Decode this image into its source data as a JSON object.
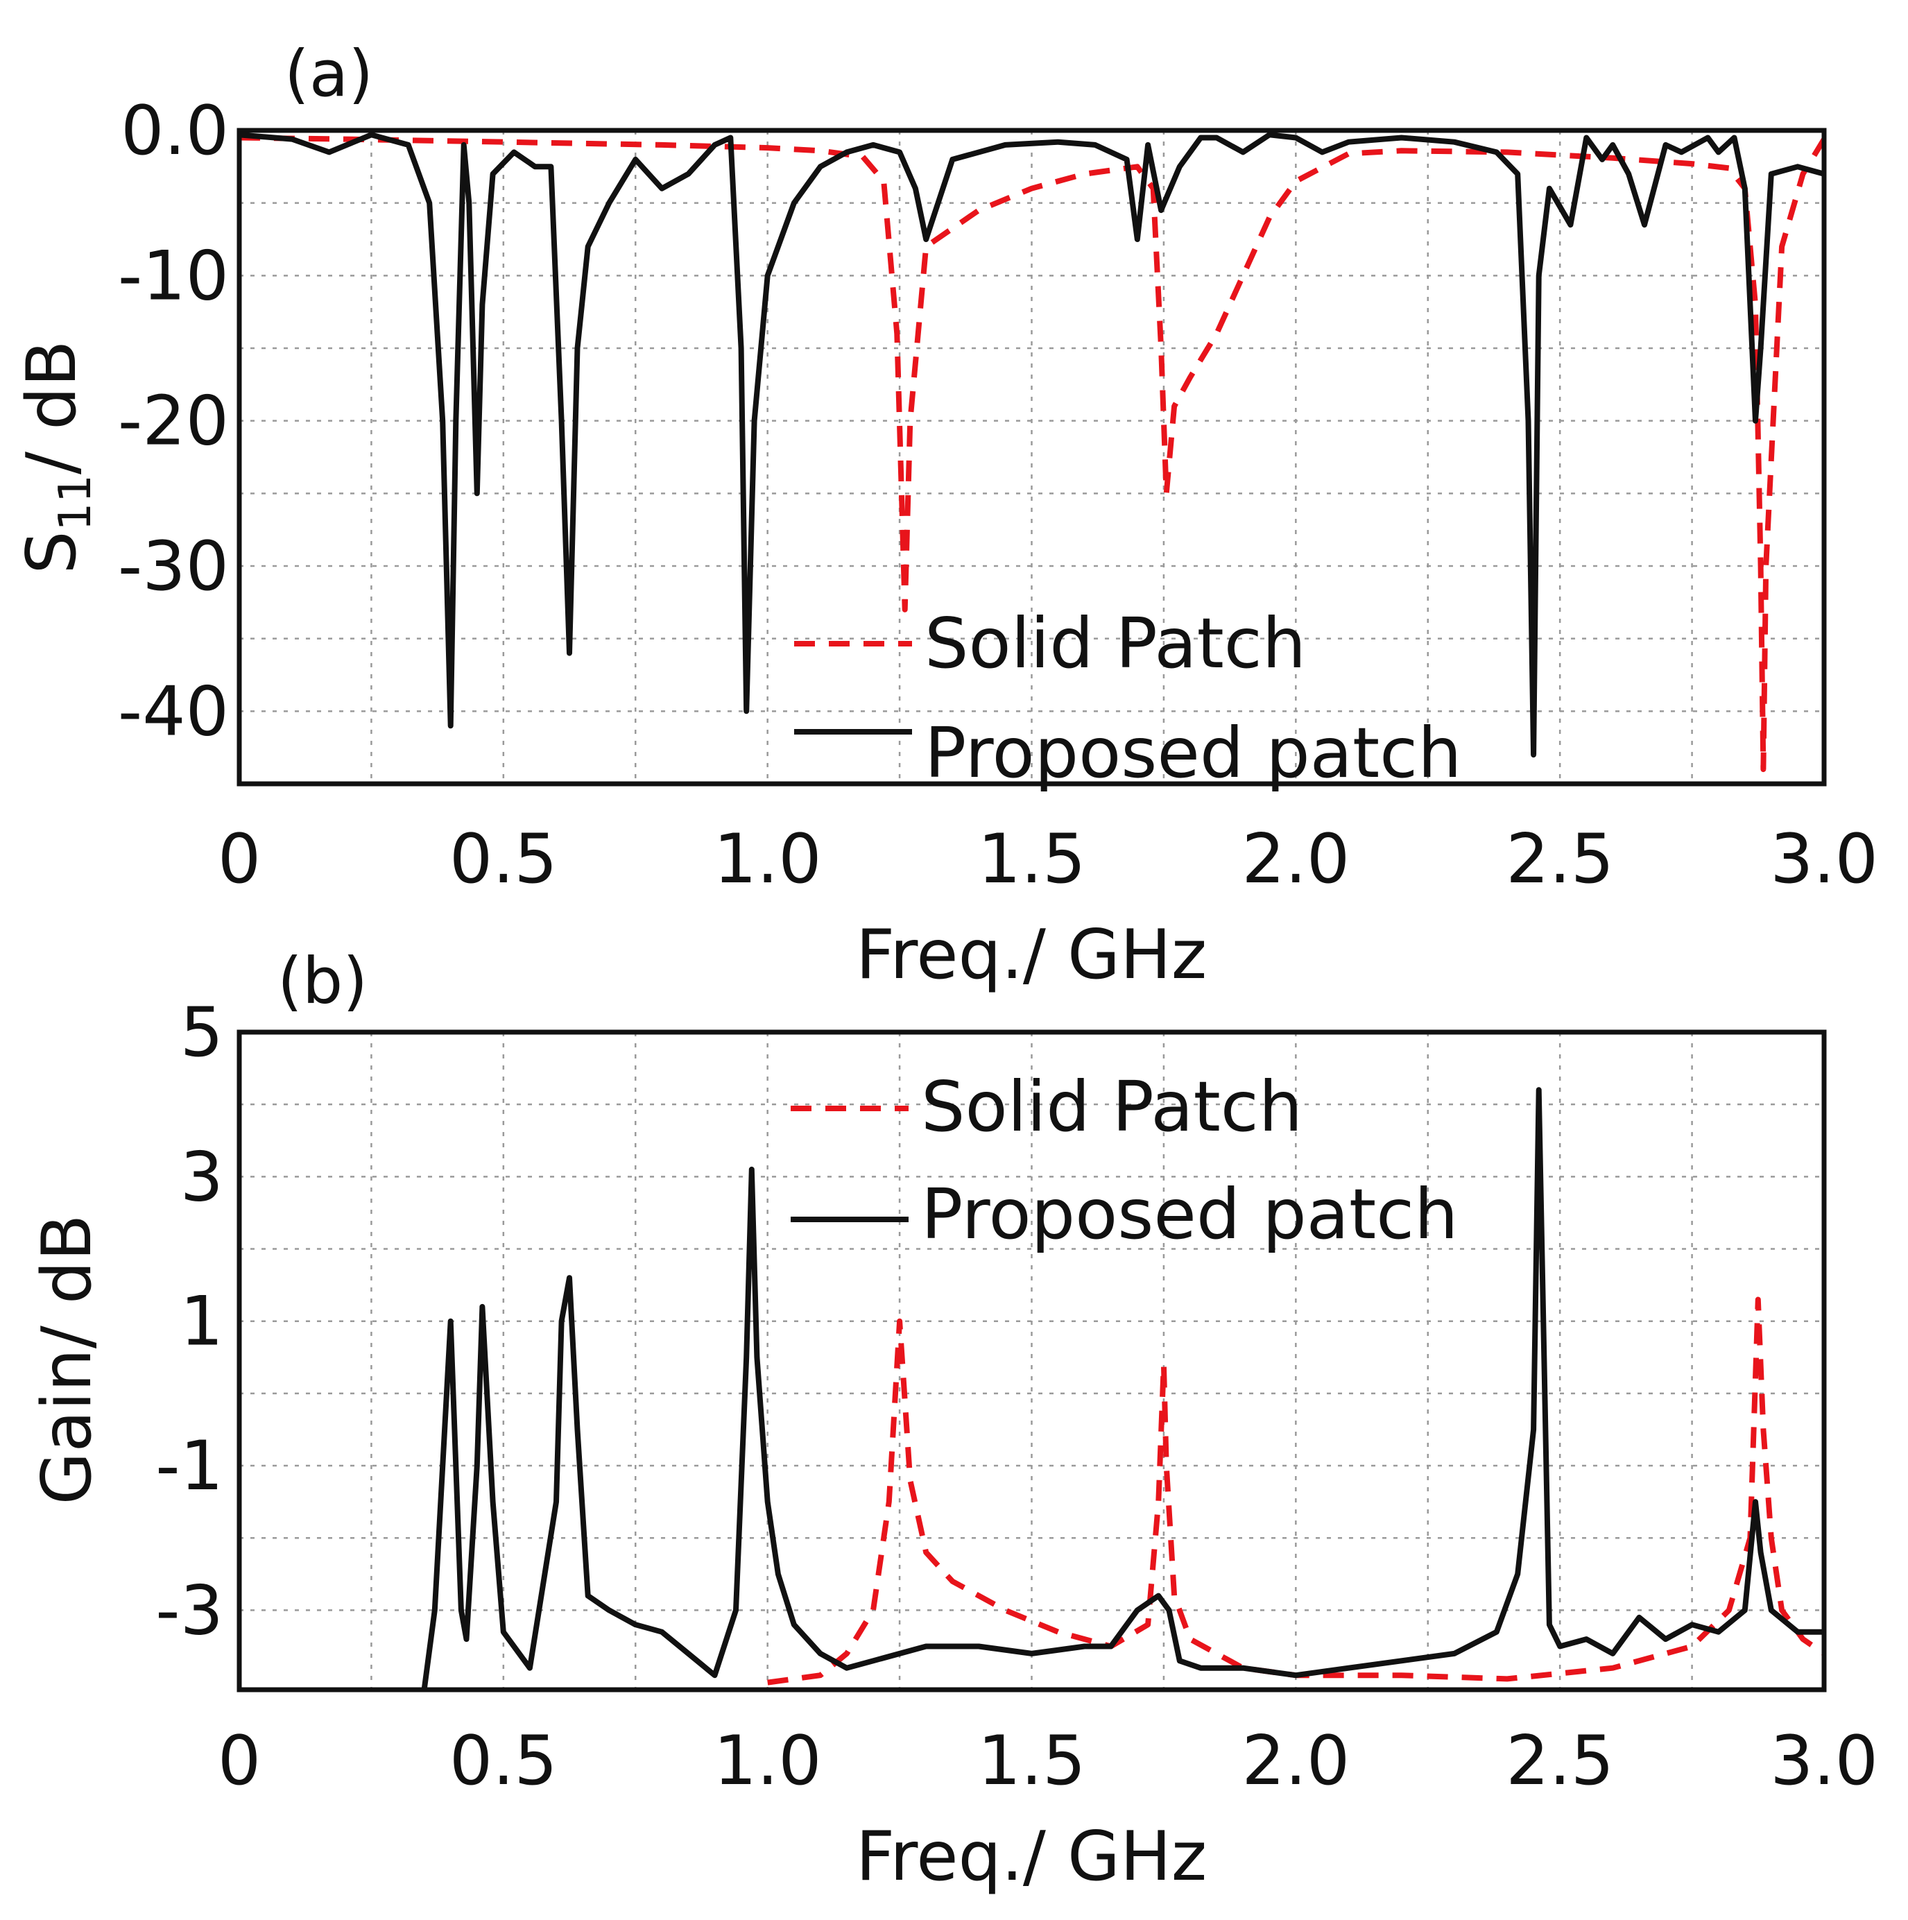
{
  "chart_data": [
    {
      "type": "line",
      "panel_label": "(a)",
      "xlabel": "Freq./ GHz",
      "ylabel_main": "S",
      "ylabel_sub": "11",
      "ylabel_rest": "/ dB",
      "xlim": [
        0,
        3.0
      ],
      "ylim": [
        -45,
        0
      ],
      "x_ticks": [
        0,
        0.5,
        1.0,
        1.5,
        2.0,
        2.5,
        3.0
      ],
      "x_tick_labels": [
        "0",
        "0.5",
        "1.0",
        "1.5",
        "2.0",
        "2.5",
        "3.0"
      ],
      "y_ticks": [
        0,
        -10,
        -20,
        -30,
        -40
      ],
      "y_tick_labels": [
        "0.0",
        "-10",
        "-20",
        "-30",
        "-40"
      ],
      "grid": true,
      "legend_position": "lower-center",
      "series": [
        {
          "name": "Solid Patch",
          "style": "dashed",
          "color": "#e8141b",
          "x": [
            0,
            0.2,
            0.5,
            0.8,
            1.0,
            1.1,
            1.18,
            1.22,
            1.245,
            1.26,
            1.27,
            1.3,
            1.4,
            1.5,
            1.6,
            1.7,
            1.73,
            1.745,
            1.755,
            1.77,
            1.8,
            1.85,
            1.9,
            1.95,
            2.0,
            2.1,
            2.2,
            2.4,
            2.6,
            2.75,
            2.82,
            2.85,
            2.87,
            2.88,
            2.885,
            2.89,
            2.92,
            2.96,
            3.0
          ],
          "y": [
            -0.5,
            -0.6,
            -0.8,
            -1.0,
            -1.2,
            -1.4,
            -1.8,
            -3.5,
            -14,
            -33,
            -20,
            -8,
            -5.5,
            -4,
            -3,
            -2.5,
            -4,
            -15,
            -25,
            -19,
            -17,
            -14,
            -10,
            -6,
            -3.5,
            -1.6,
            -1.4,
            -1.5,
            -1.9,
            -2.3,
            -2.6,
            -4,
            -12,
            -30,
            -44,
            -30,
            -8,
            -3,
            -0.6
          ]
        },
        {
          "name": "Proposed patch",
          "style": "solid",
          "color": "#111111",
          "x": [
            0,
            0.1,
            0.17,
            0.25,
            0.32,
            0.36,
            0.385,
            0.4,
            0.41,
            0.425,
            0.435,
            0.45,
            0.46,
            0.48,
            0.52,
            0.56,
            0.59,
            0.61,
            0.625,
            0.64,
            0.66,
            0.7,
            0.75,
            0.8,
            0.85,
            0.9,
            0.93,
            0.95,
            0.96,
            0.975,
            1.0,
            1.05,
            1.1,
            1.15,
            1.2,
            1.25,
            1.28,
            1.3,
            1.35,
            1.45,
            1.55,
            1.62,
            1.68,
            1.7,
            1.72,
            1.745,
            1.78,
            1.82,
            1.85,
            1.9,
            1.95,
            2.0,
            2.05,
            2.1,
            2.2,
            2.3,
            2.38,
            2.42,
            2.44,
            2.45,
            2.46,
            2.48,
            2.52,
            2.55,
            2.58,
            2.6,
            2.63,
            2.66,
            2.7,
            2.73,
            2.78,
            2.8,
            2.83,
            2.85,
            2.87,
            2.88,
            2.9,
            2.95,
            3.0
          ],
          "y": [
            -0.3,
            -0.6,
            -1.5,
            -0.3,
            -1.0,
            -5,
            -20,
            -41,
            -20,
            -1,
            -5,
            -25,
            -12,
            -3,
            -1.5,
            -2.5,
            -2.5,
            -20,
            -36,
            -15,
            -8,
            -5,
            -2,
            -4,
            -3,
            -1,
            -0.5,
            -15,
            -40,
            -20,
            -10,
            -5,
            -2.5,
            -1.5,
            -1,
            -1.5,
            -4,
            -7.5,
            -2,
            -1,
            -0.8,
            -1,
            -2,
            -7.5,
            -1,
            -5.5,
            -2.5,
            -0.5,
            -0.5,
            -1.5,
            -0.3,
            -0.5,
            -1.5,
            -0.8,
            -0.5,
            -0.8,
            -1.5,
            -3,
            -20,
            -43,
            -10,
            -4,
            -6.5,
            -0.5,
            -2,
            -1,
            -3,
            -6.5,
            -1,
            -1.5,
            -0.5,
            -1.5,
            -0.5,
            -4,
            -20,
            -15,
            -3,
            -2.5,
            -3
          ]
        }
      ]
    },
    {
      "type": "line",
      "panel_label": "(b)",
      "xlabel": "Freq./ GHz",
      "ylabel": "Gain/ dB",
      "xlim": [
        0,
        3.0
      ],
      "ylim": [
        -4.1,
        5
      ],
      "x_ticks": [
        0,
        0.5,
        1.0,
        1.5,
        2.0,
        2.5,
        3.0
      ],
      "x_tick_labels": [
        "0",
        "0.5",
        "1.0",
        "1.5",
        "2.0",
        "2.5",
        "3.0"
      ],
      "y_ticks": [
        5,
        3,
        1,
        -1,
        -3
      ],
      "y_tick_labels": [
        "5",
        "3",
        "1",
        "-1",
        "-3"
      ],
      "grid": true,
      "legend_position": "top-center",
      "series": [
        {
          "name": "Solid Patch",
          "style": "dashed",
          "color": "#e8141b",
          "x": [
            1.0,
            1.1,
            1.15,
            1.2,
            1.23,
            1.25,
            1.27,
            1.3,
            1.35,
            1.45,
            1.55,
            1.65,
            1.72,
            1.74,
            1.75,
            1.755,
            1.77,
            1.8,
            1.85,
            1.9,
            2.0,
            2.2,
            2.4,
            2.6,
            2.75,
            2.82,
            2.86,
            2.875,
            2.885,
            2.9,
            2.92,
            2.96,
            3.0
          ],
          "y": [
            -4.0,
            -3.9,
            -3.6,
            -3.0,
            -1.5,
            1.0,
            -1.2,
            -2.2,
            -2.6,
            -3.0,
            -3.3,
            -3.5,
            -3.2,
            -1.5,
            0.4,
            -1.0,
            -2.8,
            -3.4,
            -3.6,
            -3.8,
            -3.9,
            -3.9,
            -3.95,
            -3.8,
            -3.5,
            -3.0,
            -2.0,
            1.3,
            -0.5,
            -2.0,
            -3.0,
            -3.4,
            -3.6
          ]
        },
        {
          "name": "Proposed patch",
          "style": "solid",
          "color": "#111111",
          "x": [
            0.35,
            0.37,
            0.4,
            0.42,
            0.43,
            0.45,
            0.46,
            0.48,
            0.5,
            0.55,
            0.6,
            0.61,
            0.625,
            0.64,
            0.66,
            0.7,
            0.75,
            0.8,
            0.85,
            0.9,
            0.94,
            0.96,
            0.97,
            0.98,
            1.0,
            1.02,
            1.05,
            1.1,
            1.15,
            1.2,
            1.3,
            1.4,
            1.5,
            1.6,
            1.65,
            1.7,
            1.74,
            1.76,
            1.78,
            1.82,
            1.9,
            2.0,
            2.1,
            2.2,
            2.3,
            2.38,
            2.42,
            2.45,
            2.46,
            2.47,
            2.48,
            2.5,
            2.55,
            2.6,
            2.65,
            2.7,
            2.75,
            2.8,
            2.85,
            2.87,
            2.88,
            2.9,
            2.95,
            3.0
          ],
          "y": [
            -4.1,
            -3.0,
            1.0,
            -3.0,
            -3.4,
            -1.0,
            1.2,
            -1.5,
            -3.3,
            -3.8,
            -1.5,
            1.0,
            1.6,
            -0.5,
            -2.8,
            -3.0,
            -3.2,
            -3.3,
            -3.6,
            -3.9,
            -3.0,
            0.5,
            3.1,
            0.5,
            -1.5,
            -2.5,
            -3.2,
            -3.6,
            -3.8,
            -3.7,
            -3.5,
            -3.5,
            -3.6,
            -3.5,
            -3.5,
            -3.0,
            -2.8,
            -3.0,
            -3.7,
            -3.8,
            -3.8,
            -3.9,
            -3.8,
            -3.7,
            -3.6,
            -3.3,
            -2.5,
            -0.5,
            4.2,
            0.5,
            -3.2,
            -3.5,
            -3.4,
            -3.6,
            -3.1,
            -3.4,
            -3.2,
            -3.3,
            -3.0,
            -1.5,
            -2.2,
            -3.0,
            -3.3,
            -3.3
          ]
        }
      ]
    }
  ]
}
